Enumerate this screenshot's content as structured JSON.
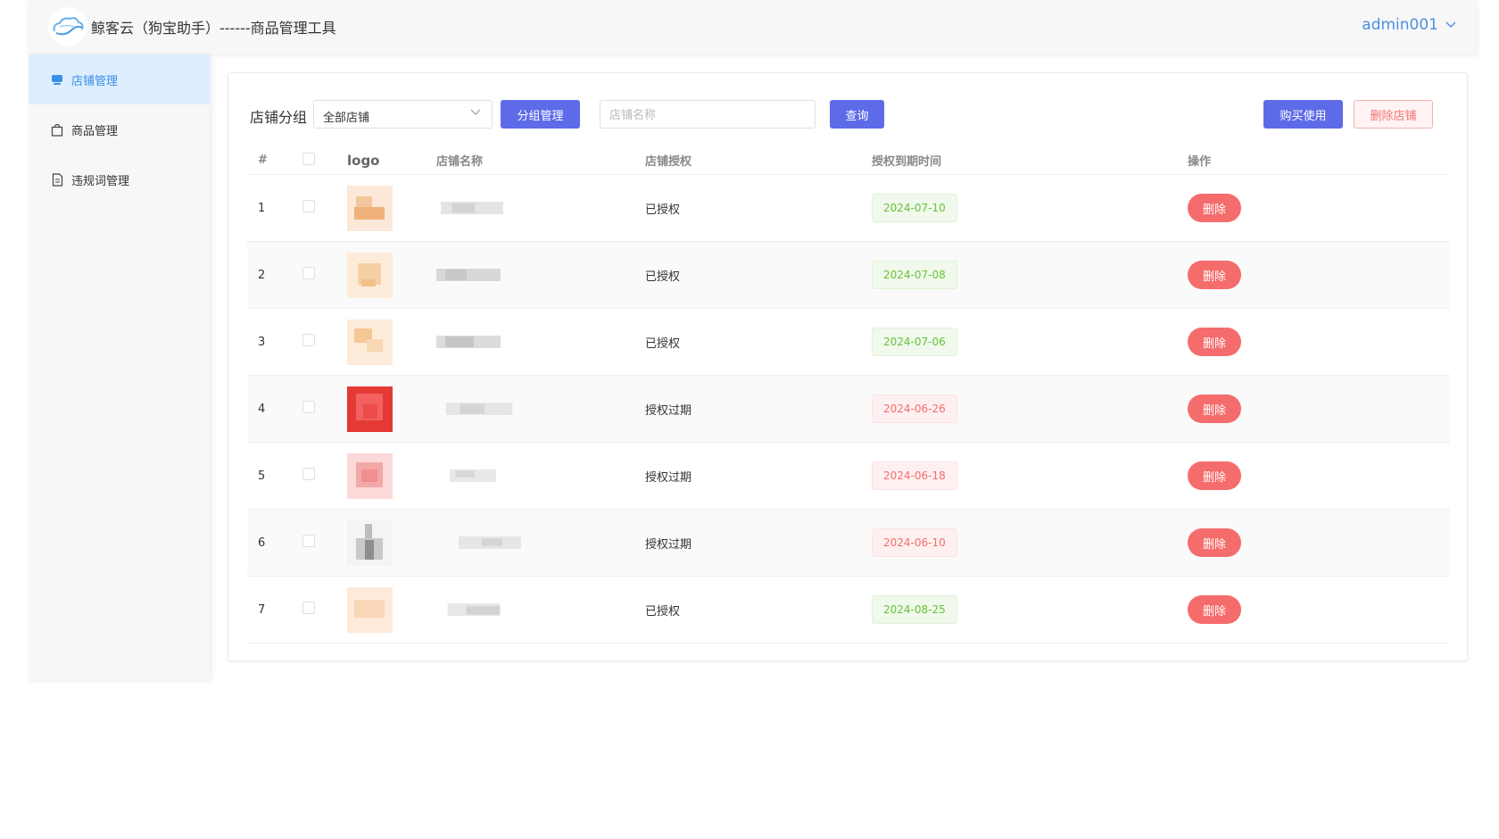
{
  "header": {
    "title": "鲸客云（狗宝助手）------商品管理工具",
    "user": "admin001"
  },
  "sidebar": {
    "items": [
      {
        "label": "店铺管理",
        "icon": "store-icon",
        "active": true
      },
      {
        "label": "商品管理",
        "icon": "shopping-bag-icon",
        "active": false
      },
      {
        "label": "违规词管理",
        "icon": "document-icon",
        "active": false
      }
    ]
  },
  "toolbar": {
    "group_label": "店铺分组",
    "group_select_value": "全部店铺",
    "group_manage_label": "分组管理",
    "search_placeholder": "店铺名称",
    "query_label": "查询",
    "buy_label": "购买使用",
    "delete_shop_label": "删除店铺"
  },
  "table": {
    "columns": [
      "#",
      "",
      "logo",
      "店铺名称",
      "店铺授权",
      "授权到期时间",
      "操作"
    ],
    "delete_label": "删除",
    "rows": [
      {
        "index": "1",
        "auth": "已授权",
        "expire": "2024-07-10",
        "status": "ok"
      },
      {
        "index": "2",
        "auth": "已授权",
        "expire": "2024-07-08",
        "status": "ok"
      },
      {
        "index": "3",
        "auth": "已授权",
        "expire": "2024-07-06",
        "status": "ok"
      },
      {
        "index": "4",
        "auth": "授权过期",
        "expire": "2024-06-26",
        "status": "expired"
      },
      {
        "index": "5",
        "auth": "授权过期",
        "expire": "2024-06-18",
        "status": "expired"
      },
      {
        "index": "6",
        "auth": "授权过期",
        "expire": "2024-06-10",
        "status": "expired"
      },
      {
        "index": "7",
        "auth": "已授权",
        "expire": "2024-08-25",
        "status": "ok"
      }
    ]
  },
  "colors": {
    "accent": "#5d6be8",
    "link": "#4a90e2",
    "success": "#67c23a",
    "danger": "#f56c6c"
  }
}
